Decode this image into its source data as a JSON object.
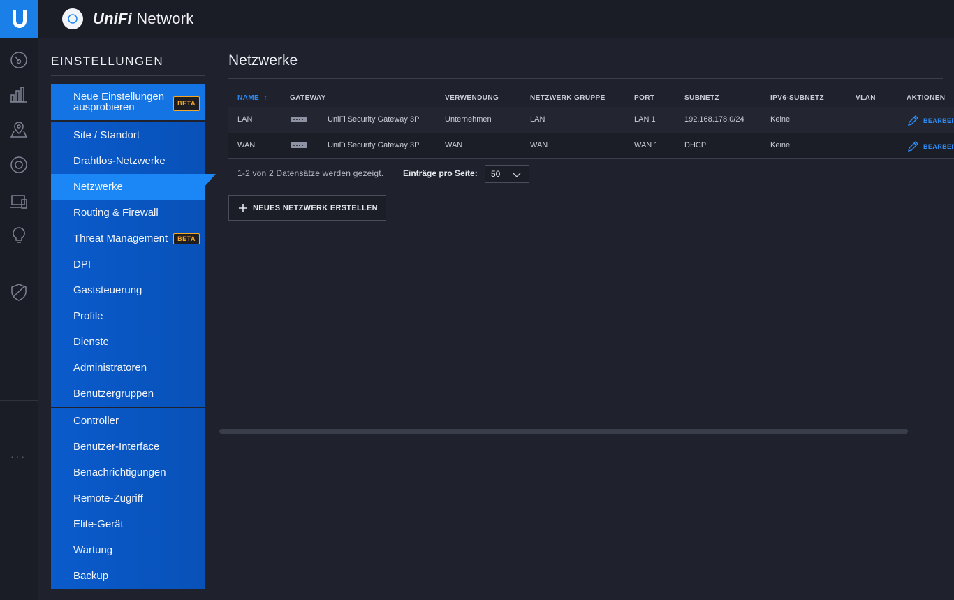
{
  "app": {
    "brand_prefix": "UniFi",
    "brand_suffix": " Network"
  },
  "settings": {
    "title": "EINSTELLUNGEN",
    "try_new": "Neue Einstellungen ausprobieren",
    "beta_label": "BETA",
    "group1": [
      {
        "label": "Site / Standort"
      },
      {
        "label": "Drahtlos-Netzwerke"
      },
      {
        "label": "Netzwerke",
        "active": true
      },
      {
        "label": "Routing & Firewall"
      },
      {
        "label": "Threat Management",
        "beta": true
      },
      {
        "label": "DPI"
      },
      {
        "label": "Gaststeuerung"
      },
      {
        "label": "Profile"
      },
      {
        "label": "Dienste"
      },
      {
        "label": "Administratoren"
      },
      {
        "label": "Benutzergruppen"
      }
    ],
    "group2": [
      {
        "label": "Controller"
      },
      {
        "label": "Benutzer-Interface"
      },
      {
        "label": "Benachrichtigungen"
      },
      {
        "label": "Remote-Zugriff"
      },
      {
        "label": "Elite-Gerät"
      },
      {
        "label": "Wartung"
      },
      {
        "label": "Backup"
      }
    ]
  },
  "page": {
    "title": "Netzwerke"
  },
  "table": {
    "headers": {
      "name": "NAME",
      "gateway": "GATEWAY",
      "usage": "VERWENDUNG",
      "group": "NETZWERK GRUPPE",
      "port": "PORT",
      "subnet": "SUBNETZ",
      "ipv6": "IPV6-SUBNETZ",
      "vlan": "VLAN",
      "actions": "AKTIONEN"
    },
    "rows": [
      {
        "name": "LAN",
        "gateway": "UniFi Security Gateway 3P",
        "usage": "Unternehmen",
        "group": "LAN",
        "port": "LAN 1",
        "subnet": "192.168.178.0/24",
        "ipv6": "Keine",
        "vlan": "",
        "action": "BEARBEITEN"
      },
      {
        "name": "WAN",
        "gateway": "UniFi Security Gateway 3P",
        "usage": "WAN",
        "group": "WAN",
        "port": "WAN 1",
        "subnet": "DHCP",
        "ipv6": "Keine",
        "vlan": "",
        "action": "BEARBEITEN"
      }
    ]
  },
  "pager": {
    "summary": "1-2 von 2 Datensätze werden gezeigt.",
    "per_page_label": "Einträge pro Seite:",
    "per_page_value": "50"
  },
  "actions": {
    "new_network": "NEUES NETZWERK ERSTELLEN"
  },
  "colors": {
    "accent": "#1b86f5",
    "beta": "#f5a623"
  }
}
